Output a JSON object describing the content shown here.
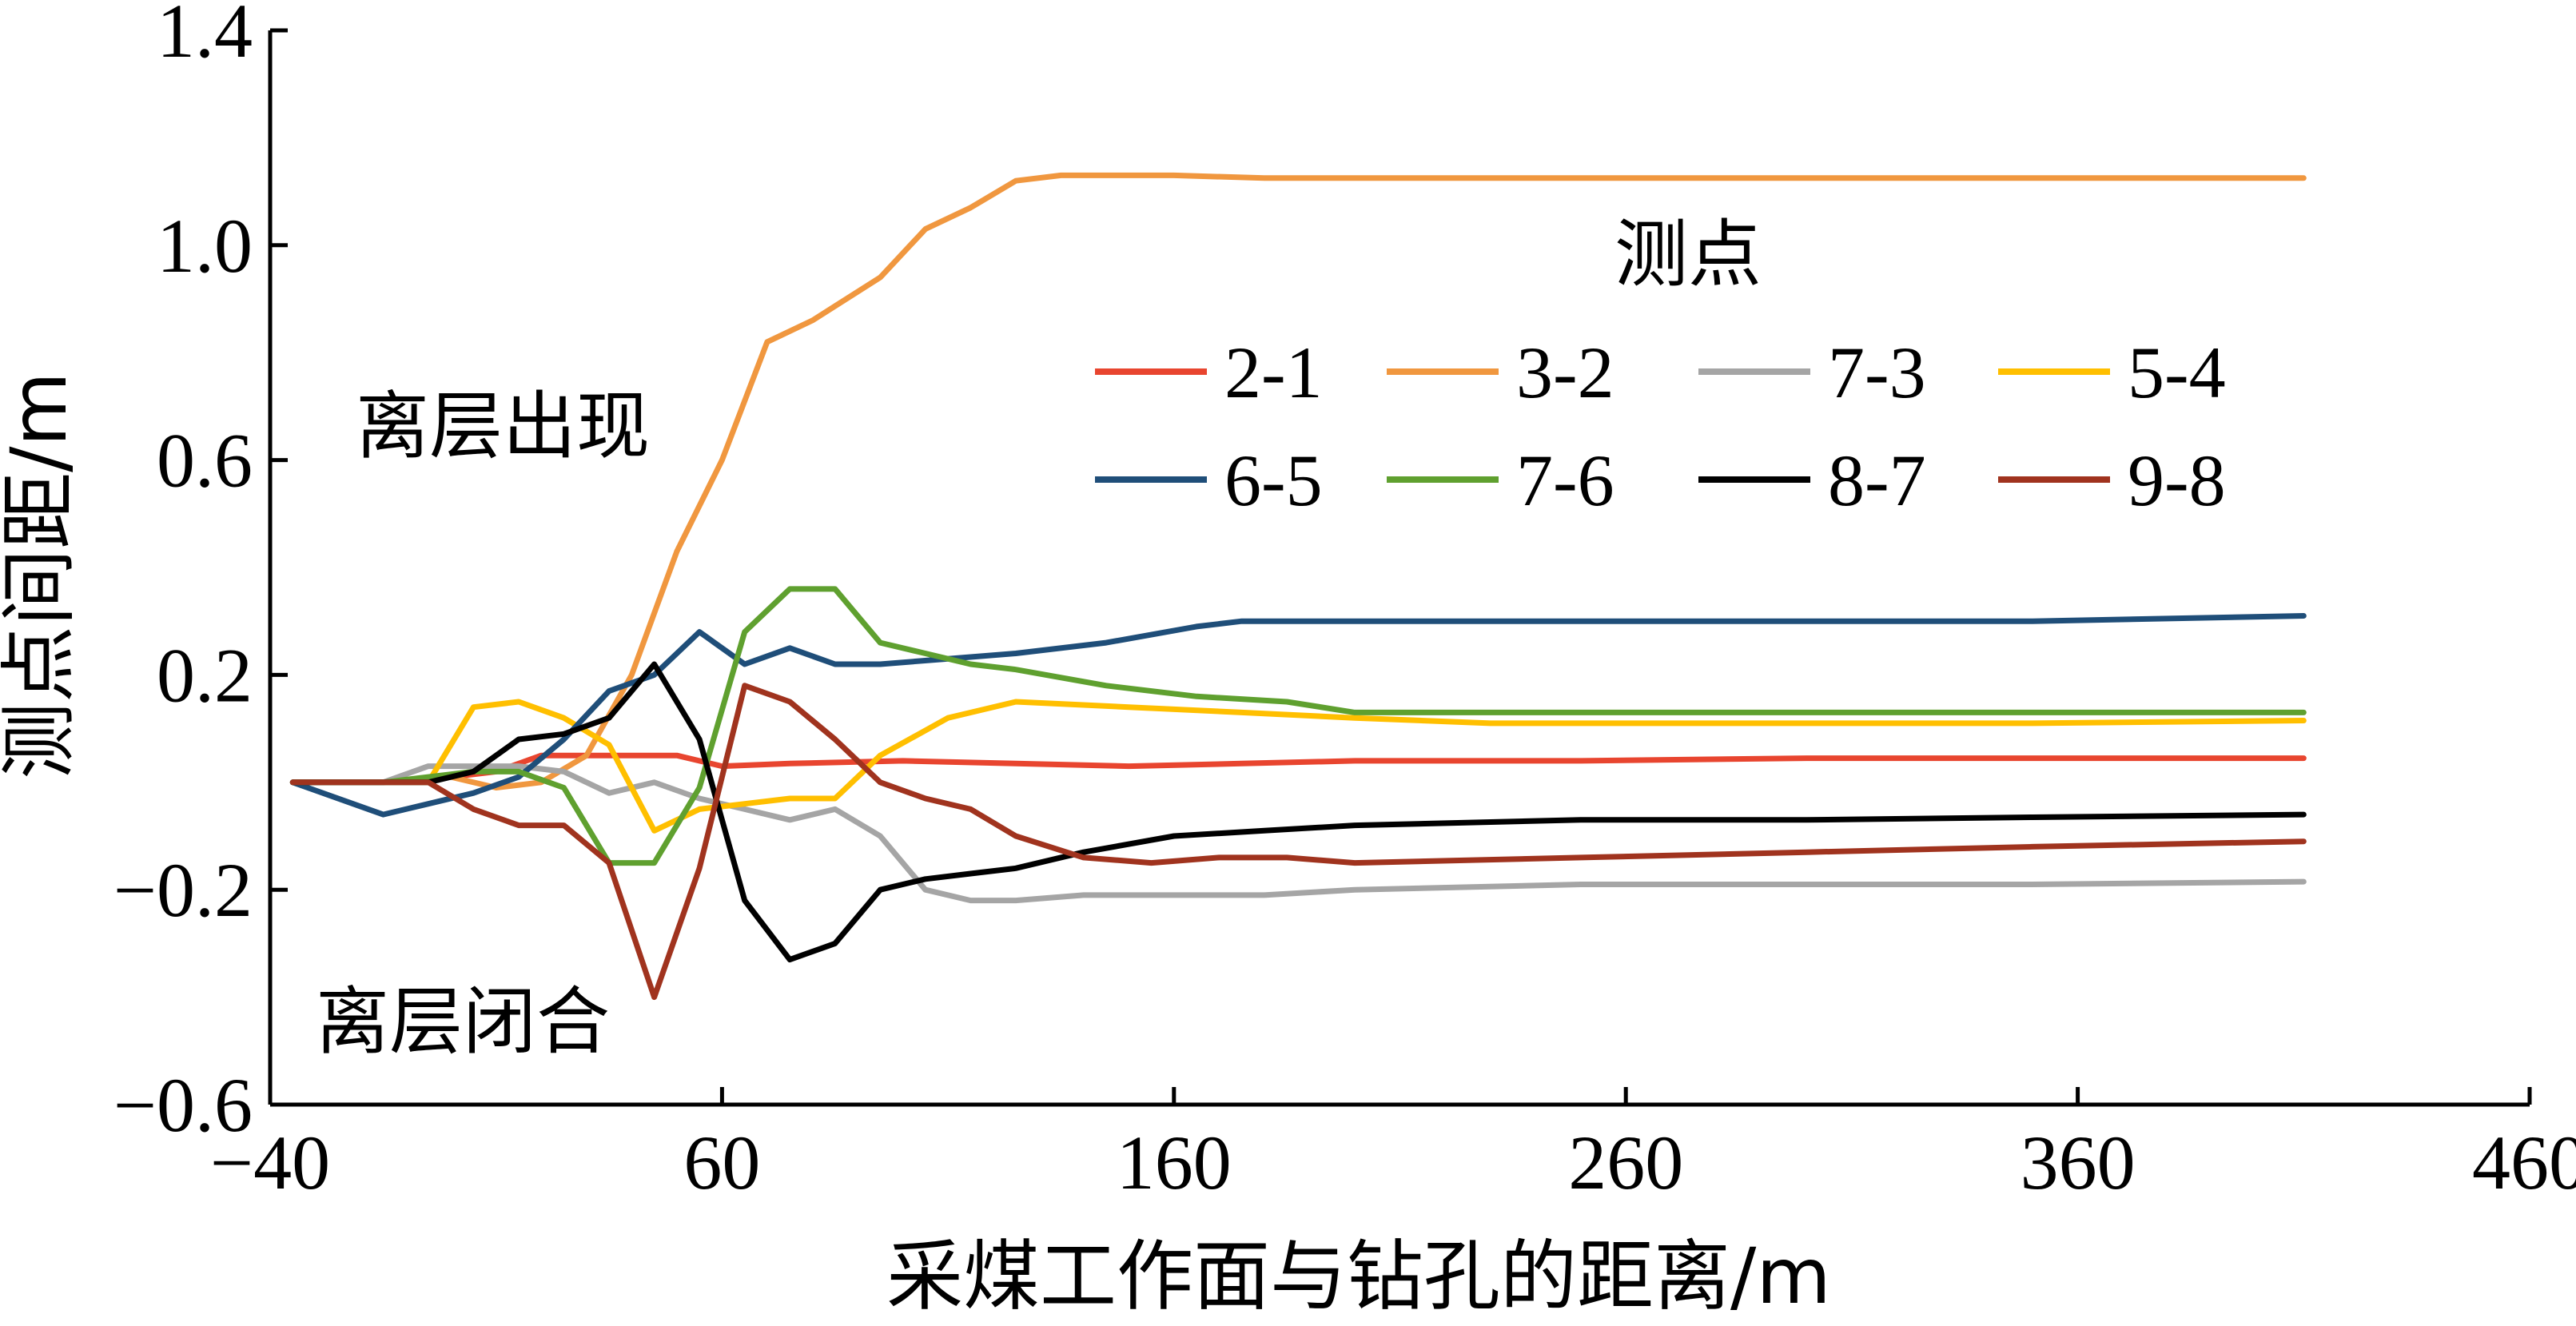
{
  "chart_data": {
    "type": "line",
    "xlabel": "采煤工作面与钻孔的距离/m",
    "ylabel": "测点间距/m",
    "xlim": [
      -40,
      460
    ],
    "ylim": [
      -0.6,
      1.4
    ],
    "xticks": [
      -40,
      60,
      160,
      260,
      360,
      460
    ],
    "yticks": [
      -0.6,
      -0.2,
      0.2,
      0.6,
      1.0,
      1.4
    ],
    "xtick_labels": [
      "−40",
      "60",
      "160",
      "260",
      "360",
      "460"
    ],
    "ytick_labels": [
      "−0.6",
      "−0.2",
      "0.2",
      "0.6",
      "1.0",
      "1.4"
    ],
    "grid": false,
    "legend": {
      "title": "测点",
      "placement": "top-right",
      "columns": 4
    },
    "annotations": [
      "离层出现",
      "离层闭合"
    ],
    "series": [
      {
        "name": "2-1",
        "color": "#e8452f",
        "x": [
          -35,
          -15,
          0,
          10,
          20,
          30,
          40,
          50,
          60,
          75,
          100,
          125,
          150,
          175,
          200,
          250,
          300,
          350,
          410
        ],
        "y": [
          0,
          0,
          0.01,
          0.02,
          0.05,
          0.05,
          0.05,
          0.05,
          0.03,
          0.035,
          0.04,
          0.035,
          0.03,
          0.035,
          0.04,
          0.04,
          0.045,
          0.045,
          0.045
        ]
      },
      {
        "name": "3-2",
        "color": "#f0973f",
        "x": [
          -35,
          -15,
          0,
          10,
          20,
          30,
          40,
          50,
          60,
          70,
          80,
          95,
          105,
          115,
          125,
          135,
          145,
          160,
          180,
          250,
          300,
          350,
          410
        ],
        "y": [
          0,
          0,
          0.01,
          -0.01,
          0,
          0.05,
          0.2,
          0.43,
          0.6,
          0.82,
          0.86,
          0.94,
          1.03,
          1.07,
          1.12,
          1.13,
          1.13,
          1.13,
          1.125,
          1.125,
          1.125,
          1.125,
          1.125
        ]
      },
      {
        "name": "7-3",
        "color": "#a5a5a5",
        "x": [
          -35,
          -15,
          -5,
          5,
          15,
          25,
          35,
          45,
          55,
          65,
          75,
          85,
          95,
          105,
          115,
          125,
          140,
          160,
          180,
          200,
          250,
          300,
          350,
          410
        ],
        "y": [
          0,
          0,
          0.03,
          0.03,
          0.03,
          0.02,
          -0.02,
          0,
          -0.03,
          -0.05,
          -0.07,
          -0.05,
          -0.1,
          -0.2,
          -0.22,
          -0.22,
          -0.21,
          -0.21,
          -0.21,
          -0.2,
          -0.19,
          -0.19,
          -0.19,
          -0.185
        ]
      },
      {
        "name": "5-4",
        "color": "#ffbf00",
        "x": [
          -35,
          -15,
          -5,
          5,
          15,
          25,
          35,
          45,
          55,
          65,
          75,
          85,
          95,
          110,
          125,
          150,
          175,
          200,
          230,
          260,
          300,
          350,
          410
        ],
        "y": [
          0,
          0,
          0,
          0.14,
          0.15,
          0.12,
          0.07,
          -0.09,
          -0.05,
          -0.04,
          -0.03,
          -0.03,
          0.05,
          0.12,
          0.15,
          0.14,
          0.13,
          0.12,
          0.11,
          0.11,
          0.11,
          0.11,
          0.115
        ]
      },
      {
        "name": "6-5",
        "color": "#1f4e79",
        "x": [
          -35,
          -15,
          -5,
          5,
          15,
          25,
          35,
          45,
          55,
          65,
          75,
          85,
          95,
          110,
          125,
          145,
          165,
          175,
          200,
          250,
          300,
          350,
          410
        ],
        "y": [
          0,
          -0.06,
          -0.04,
          -0.02,
          0.01,
          0.08,
          0.17,
          0.2,
          0.28,
          0.22,
          0.25,
          0.22,
          0.22,
          0.23,
          0.24,
          0.26,
          0.29,
          0.3,
          0.3,
          0.3,
          0.3,
          0.3,
          0.31
        ]
      },
      {
        "name": "7-6",
        "color": "#5fa02f",
        "x": [
          -35,
          -15,
          -5,
          5,
          15,
          25,
          35,
          45,
          55,
          65,
          75,
          85,
          95,
          105,
          115,
          125,
          145,
          165,
          185,
          200,
          250,
          300,
          350,
          410
        ],
        "y": [
          0,
          0,
          0.01,
          0.02,
          0.02,
          -0.01,
          -0.15,
          -0.15,
          -0.01,
          0.28,
          0.36,
          0.36,
          0.26,
          0.24,
          0.22,
          0.21,
          0.18,
          0.16,
          0.15,
          0.13,
          0.13,
          0.13,
          0.13,
          0.13
        ]
      },
      {
        "name": "8-7",
        "color": "#000000",
        "x": [
          -35,
          -15,
          -5,
          5,
          15,
          25,
          35,
          45,
          55,
          65,
          75,
          85,
          95,
          105,
          115,
          125,
          140,
          160,
          180,
          200,
          250,
          300,
          350,
          410
        ],
        "y": [
          0,
          0,
          0,
          0.02,
          0.08,
          0.09,
          0.12,
          0.22,
          0.08,
          -0.22,
          -0.33,
          -0.3,
          -0.2,
          -0.18,
          -0.17,
          -0.16,
          -0.13,
          -0.1,
          -0.09,
          -0.08,
          -0.07,
          -0.07,
          -0.065,
          -0.06
        ]
      },
      {
        "name": "9-8",
        "color": "#a0331e",
        "x": [
          -35,
          -15,
          -5,
          5,
          15,
          25,
          35,
          45,
          55,
          65,
          75,
          85,
          95,
          105,
          115,
          125,
          140,
          155,
          170,
          185,
          200,
          250,
          300,
          350,
          410
        ],
        "y": [
          0,
          0,
          0,
          -0.05,
          -0.08,
          -0.08,
          -0.15,
          -0.4,
          -0.16,
          0.18,
          0.15,
          0.08,
          0,
          -0.03,
          -0.05,
          -0.1,
          -0.14,
          -0.15,
          -0.14,
          -0.14,
          -0.15,
          -0.14,
          -0.13,
          -0.12,
          -0.11
        ]
      }
    ]
  }
}
